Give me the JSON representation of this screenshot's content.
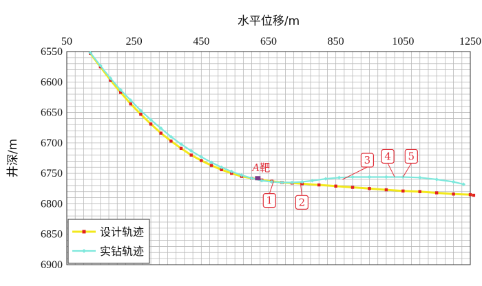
{
  "chart_data": {
    "type": "line",
    "title": "",
    "xlabel": "水平位移/m",
    "ylabel": "井深/m",
    "x_axis_position": "top",
    "y_inverted": true,
    "xlim": [
      50,
      1250
    ],
    "ylim": [
      6550,
      6900
    ],
    "x_ticks": [
      "50",
      "250",
      "450",
      "650",
      "850",
      "1050",
      "1250"
    ],
    "y_ticks": [
      "6550",
      "6600",
      "6650",
      "6700",
      "6750",
      "6800",
      "6850",
      "6900"
    ],
    "grid": true,
    "legend_position": "bottom-left",
    "series": [
      {
        "name": "设计轨迹",
        "line_color": "#f2e81c",
        "marker_color": "#e02020",
        "marker": "square",
        "x": [
          120,
          150,
          180,
          210,
          240,
          270,
          300,
          330,
          360,
          390,
          420,
          450,
          480,
          510,
          540,
          570,
          600,
          630,
          660,
          690,
          720,
          750,
          800,
          850,
          900,
          950,
          1000,
          1050,
          1100,
          1150,
          1200,
          1250,
          1260
        ],
        "y": [
          6553,
          6575,
          6597,
          6617,
          6636,
          6653,
          6669,
          6684,
          6697,
          6709,
          6720,
          6729,
          6737,
          6744,
          6750,
          6755,
          6758,
          6761,
          6763,
          6765,
          6766,
          6767,
          6769,
          6771,
          6773,
          6775,
          6777,
          6779,
          6780,
          6782,
          6784,
          6785,
          6786
        ]
      },
      {
        "name": "实钻轨迹",
        "line_color": "#7ee8dc",
        "marker_color": "#7ee8dc",
        "marker": "diamond",
        "x": [
          120,
          150,
          180,
          210,
          240,
          270,
          300,
          330,
          360,
          390,
          420,
          450,
          480,
          510,
          540,
          570,
          600,
          630,
          660,
          690,
          720,
          750,
          780,
          820,
          860,
          900,
          950,
          1000,
          1050,
          1100,
          1150,
          1200,
          1230
        ],
        "y": [
          6552,
          6573,
          6594,
          6613,
          6630,
          6647,
          6662,
          6676,
          6690,
          6702,
          6713,
          6723,
          6732,
          6740,
          6747,
          6753,
          6758,
          6762,
          6764,
          6765,
          6765,
          6764,
          6762,
          6759,
          6757,
          6756,
          6756,
          6756,
          6756,
          6757,
          6760,
          6764,
          6768
        ]
      }
    ],
    "annotations": {
      "target": {
        "label": "A",
        "suffix": "靶",
        "x": 618,
        "y": 6758
      },
      "callouts": [
        {
          "label": "1",
          "x": 665,
          "y": 6763
        },
        {
          "label": "2",
          "x": 745,
          "y": 6766
        },
        {
          "label": "3",
          "x": 870,
          "y": 6760
        },
        {
          "label": "4",
          "x": 1025,
          "y": 6756
        },
        {
          "label": "5",
          "x": 1050,
          "y": 6756
        }
      ]
    }
  }
}
